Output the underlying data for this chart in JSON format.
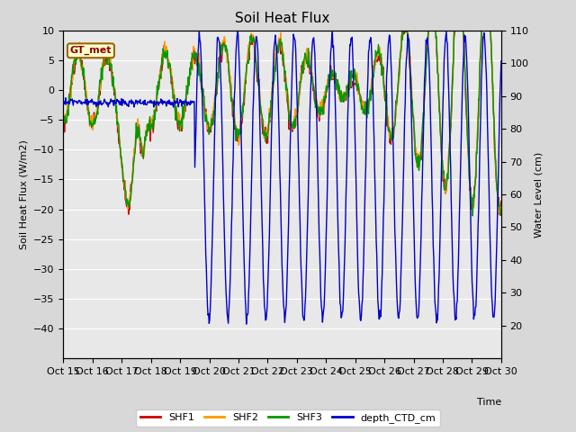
{
  "title": "Soil Heat Flux",
  "xlabel": "Time",
  "ylabel_left": "Soil Heat Flux (W/m2)",
  "ylabel_right": "Water Level (cm)",
  "xlim": [
    0,
    15
  ],
  "ylim_left": [
    -45,
    10
  ],
  "ylim_right": [
    10,
    110
  ],
  "yticks_left": [
    -40,
    -35,
    -30,
    -25,
    -20,
    -15,
    -10,
    -5,
    0,
    5,
    10
  ],
  "yticks_right": [
    20,
    30,
    40,
    50,
    60,
    70,
    80,
    90,
    100,
    110
  ],
  "xtick_labels": [
    "Oct 15",
    "Oct 16",
    "Oct 17",
    "Oct 18",
    "Oct 19",
    "Oct 20",
    "Oct 21",
    "Oct 22",
    "Oct 23",
    "Oct 24",
    "Oct 25",
    "Oct 26",
    "Oct 27",
    "Oct 28",
    "Oct 29",
    "Oct 30"
  ],
  "colors": {
    "SHF1": "#cc0000",
    "SHF2": "#ff9900",
    "SHF3": "#009900",
    "depth_CTD_cm": "#0000cc"
  },
  "legend_label": "GT_met",
  "legend_bg": "#ffffcc",
  "legend_border": "#996600",
  "fig_bg": "#d8d8d8",
  "plot_bg": "#e8e8e8",
  "grid_color": "#ffffff",
  "linewidth": 1.0
}
